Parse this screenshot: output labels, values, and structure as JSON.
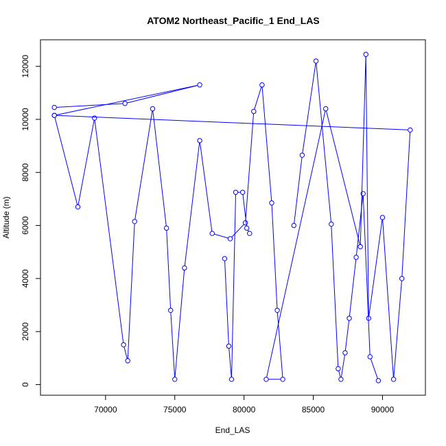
{
  "chart_data": {
    "type": "line",
    "title": "ATOM2 Northeast_Pacific_1 End_LAS",
    "xlabel": "End_LAS",
    "ylabel": "Altitude (m)",
    "xlim": [
      65300,
      93100
    ],
    "ylim": [
      -400,
      13000
    ],
    "x_ticks": [
      70000,
      75000,
      80000,
      85000,
      90000
    ],
    "x_tick_labels": [
      "70000",
      "75000",
      "80000",
      "85000",
      "90000"
    ],
    "y_ticks": [
      0,
      2000,
      4000,
      6000,
      8000,
      10000,
      12000
    ],
    "y_tick_labels": [
      "0",
      "2000",
      "4000",
      "6000",
      "8000",
      "10000",
      "12000"
    ],
    "grid": false,
    "legend": "none",
    "marker": "open-circle",
    "color": "#0000ff",
    "series": [
      {
        "x": [
          66300,
          71400,
          76800,
          66300,
          92000,
          91400,
          90800,
          90000,
          89000,
          88800,
          88400,
          85900,
          81600,
          82800,
          82400,
          82000,
          81300,
          80700,
          80100,
          79000,
          77700,
          76800,
          75700,
          75000,
          74700,
          74400,
          73400,
          72100,
          71600,
          71300,
          69200,
          68000,
          66300
        ],
        "y": [
          10450,
          10600,
          11300,
          10150,
          9600,
          4000,
          200,
          6300,
          2500,
          12450,
          5200,
          10400,
          200,
          200,
          2800,
          6850,
          11300,
          10300,
          6100,
          5500,
          5700,
          9200,
          4400,
          200,
          2800,
          5900,
          10400,
          6150,
          900,
          1500,
          10050,
          6700,
          10150
        ]
      },
      {
        "x": [
          78600,
          78900,
          79100,
          79400,
          79900,
          80200,
          80400
        ],
        "y": [
          4750,
          1450,
          200,
          7250,
          7250,
          5900,
          5700
        ]
      },
      {
        "x": [
          83600,
          84200,
          85200,
          86300,
          86800,
          87000,
          87300,
          87600,
          88100,
          88600,
          89100,
          89700
        ],
        "y": [
          6000,
          8650,
          12200,
          6050,
          600,
          200,
          1200,
          2500,
          4800,
          7200,
          1050,
          150
        ]
      }
    ]
  }
}
